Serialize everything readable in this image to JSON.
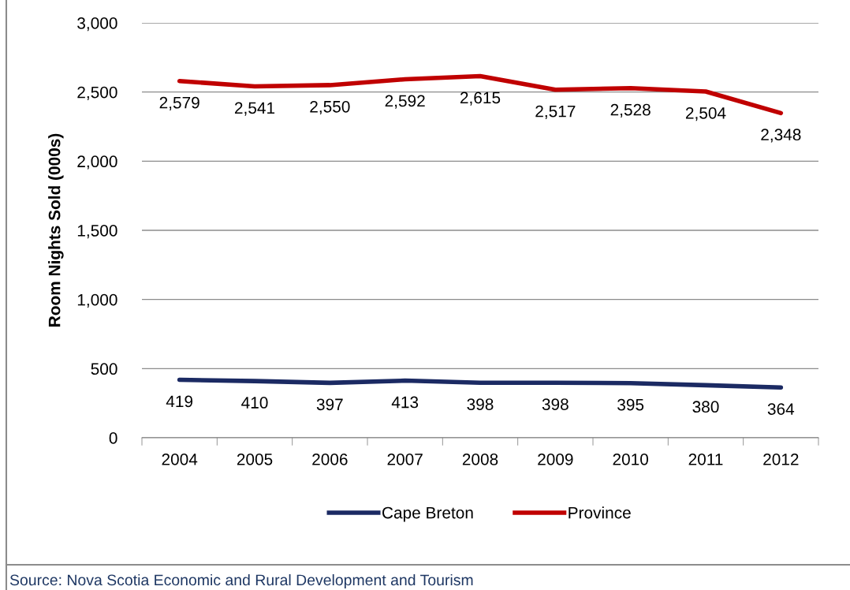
{
  "chart_data": {
    "type": "line",
    "ylabel": "Room Nights Sold (000s)",
    "categories": [
      "2004",
      "2005",
      "2006",
      "2007",
      "2008",
      "2009",
      "2010",
      "2011",
      "2012"
    ],
    "series": [
      {
        "name": "Cape Breton",
        "color": "#1b2a63",
        "values": [
          419,
          410,
          397,
          413,
          398,
          398,
          395,
          380,
          364
        ],
        "value_labels": [
          "419",
          "410",
          "397",
          "413",
          "398",
          "398",
          "395",
          "380",
          "364"
        ]
      },
      {
        "name": "Province",
        "color": "#c00000",
        "values": [
          2579,
          2541,
          2550,
          2592,
          2615,
          2517,
          2528,
          2504,
          2348
        ],
        "value_labels": [
          "2,579",
          "2,541",
          "2,550",
          "2,592",
          "2,615",
          "2,517",
          "2,528",
          "2,504",
          "2,348"
        ]
      }
    ],
    "ylim": [
      0,
      3000
    ],
    "yticks": [
      {
        "value": 0,
        "label": "0"
      },
      {
        "value": 500,
        "label": "500"
      },
      {
        "value": 1000,
        "label": "1,000"
      },
      {
        "value": 1500,
        "label": "1,500"
      },
      {
        "value": 2000,
        "label": "2,000"
      },
      {
        "value": 2500,
        "label": "2,500"
      },
      {
        "value": 3000,
        "label": "3,000"
      }
    ],
    "grid": "y",
    "legend": "bottom",
    "marker": "none",
    "line_style": "solid",
    "annotations": [
      "Source: Nova Scotia Economic and Rural Development and Tourism"
    ]
  }
}
